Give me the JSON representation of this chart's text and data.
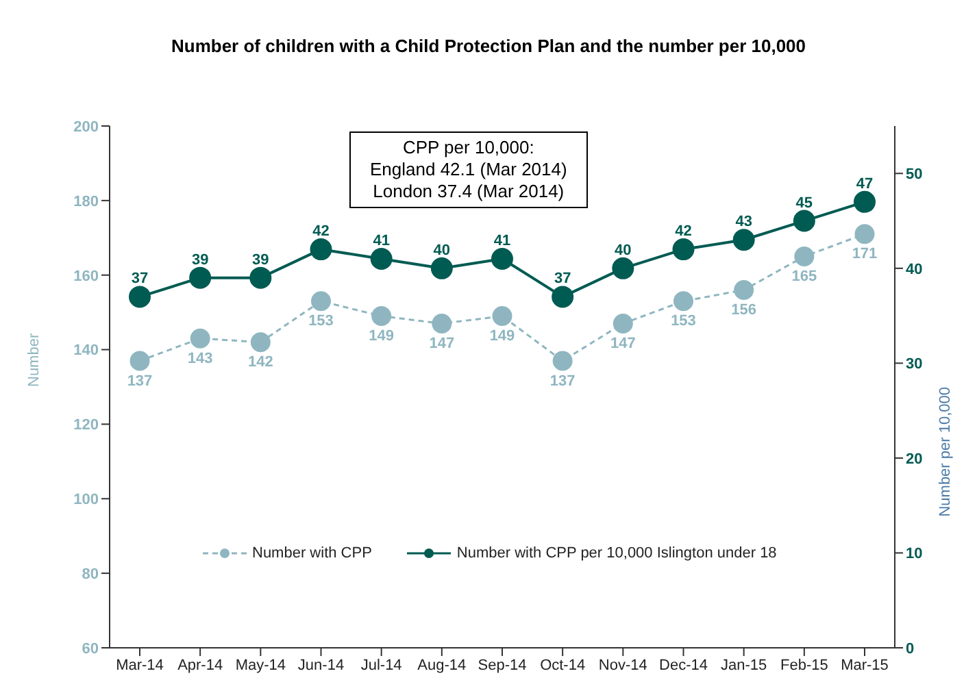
{
  "chart_data": {
    "type": "line",
    "title": "Number of children with a Child Protection Plan and the number per 10,000",
    "ylabel": "Number",
    "y2label": "Number per 10,000",
    "categories": [
      "Mar-14",
      "Apr-14",
      "May-14",
      "Jun-14",
      "Jul-14",
      "Aug-14",
      "Sep-14",
      "Oct-14",
      "Nov-14",
      "Dec-14",
      "Jan-15",
      "Feb-15",
      "Mar-15"
    ],
    "series": [
      {
        "name": "Number with CPP",
        "color": "#8fb6c0",
        "line_style": "dashed",
        "values": [
          137,
          143,
          142,
          153,
          149,
          147,
          149,
          137,
          147,
          153,
          156,
          165,
          171
        ]
      },
      {
        "name": "Number with CPP per 10,000 Islington under 18",
        "color": "#005b52",
        "line_style": "solid",
        "axis": "y2",
        "values": [
          37,
          39,
          39,
          42,
          41,
          40,
          41,
          37,
          40,
          42,
          43,
          45,
          47
        ]
      }
    ],
    "ylim": [
      60,
      200
    ],
    "yticks": [
      60,
      80,
      100,
      120,
      140,
      160,
      180,
      200
    ],
    "y2lim": [
      0,
      55
    ],
    "y2ticks": [
      0,
      10,
      20,
      30,
      40,
      50
    ],
    "annotations": [
      "CPP per 10,000:",
      "England 42.1 (Mar 2014)",
      "London 37.4 (Mar 2014)"
    ],
    "data_labels": true,
    "marker": "circle",
    "legend": "bottom",
    "grid": false
  }
}
